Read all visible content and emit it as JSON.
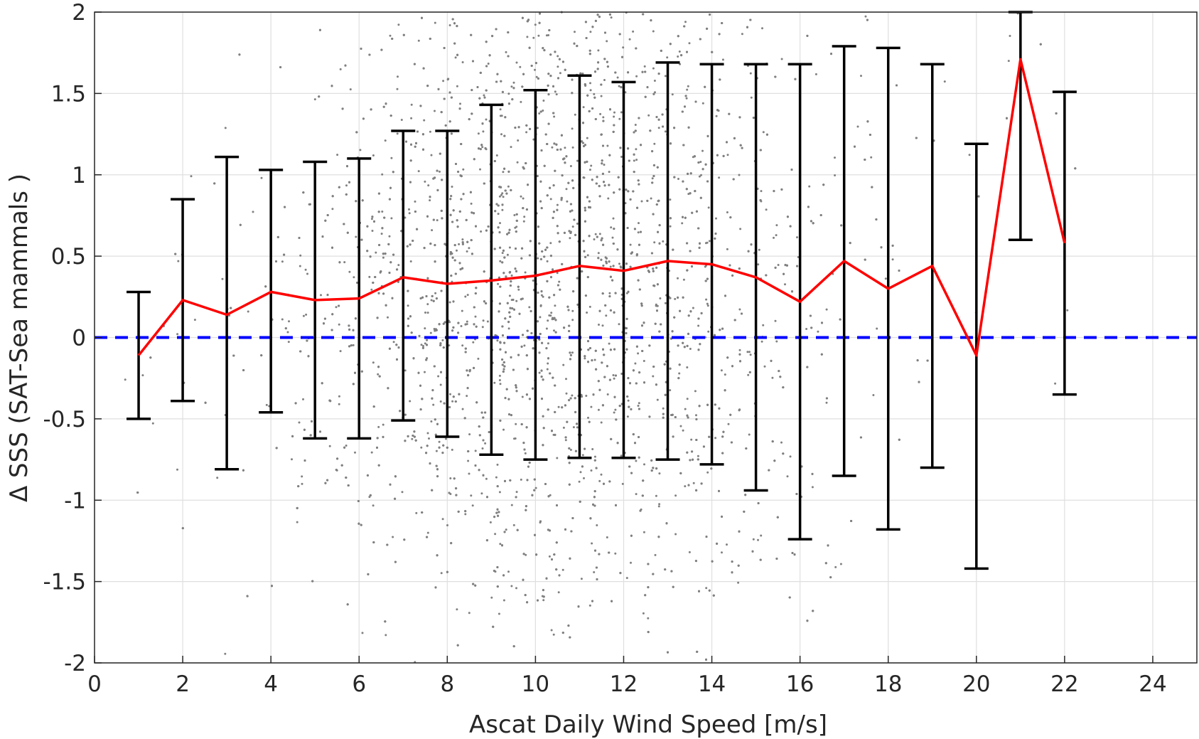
{
  "chart_data": {
    "type": "line",
    "title": "",
    "xlabel": "Ascat Daily Wind Speed [m/s]",
    "ylabel": "Δ SSS (SAT-Sea mammals )",
    "xlim": [
      0,
      25
    ],
    "ylim": [
      -2,
      2
    ],
    "x_ticks": [
      0,
      2,
      4,
      6,
      8,
      10,
      12,
      14,
      16,
      18,
      20,
      22,
      24
    ],
    "y_ticks": [
      -2,
      -1.5,
      -1,
      -0.5,
      0,
      0.5,
      1,
      1.5,
      2
    ],
    "grid": true,
    "legend": "none",
    "series": [
      {
        "type": "line-errorbar",
        "color": "#ff0000",
        "errorbar_color": "#000000",
        "x": [
          1,
          2,
          3,
          4,
          5,
          6,
          7,
          8,
          9,
          10,
          11,
          12,
          13,
          14,
          15,
          16,
          17,
          18,
          19,
          20,
          21,
          22
        ],
        "y": [
          -0.11,
          0.23,
          0.14,
          0.28,
          0.23,
          0.24,
          0.37,
          0.33,
          0.35,
          0.38,
          0.44,
          0.41,
          0.47,
          0.45,
          0.37,
          0.22,
          0.47,
          0.3,
          0.44,
          -0.11,
          1.71,
          0.58
        ],
        "lower": [
          -0.5,
          -0.39,
          -0.81,
          -0.46,
          -0.62,
          -0.62,
          -0.51,
          -0.61,
          -0.72,
          -0.75,
          -0.74,
          -0.74,
          -0.75,
          -0.78,
          -0.94,
          -1.24,
          -0.85,
          -1.18,
          -0.8,
          -1.42,
          0.6,
          -0.35
        ],
        "upper": [
          0.28,
          0.85,
          1.11,
          1.03,
          1.08,
          1.1,
          1.27,
          1.27,
          1.43,
          1.52,
          1.61,
          1.57,
          1.69,
          1.68,
          1.68,
          1.68,
          1.79,
          1.78,
          1.68,
          1.19,
          2.0,
          1.51
        ]
      },
      {
        "type": "reference-line",
        "y": 0,
        "color": "#0000ff",
        "style": "dashed"
      },
      {
        "type": "scatter",
        "color": "#808080",
        "description_points": "dense cloud of individual matchups, mostly between 6 and 15 m/s"
      }
    ]
  }
}
